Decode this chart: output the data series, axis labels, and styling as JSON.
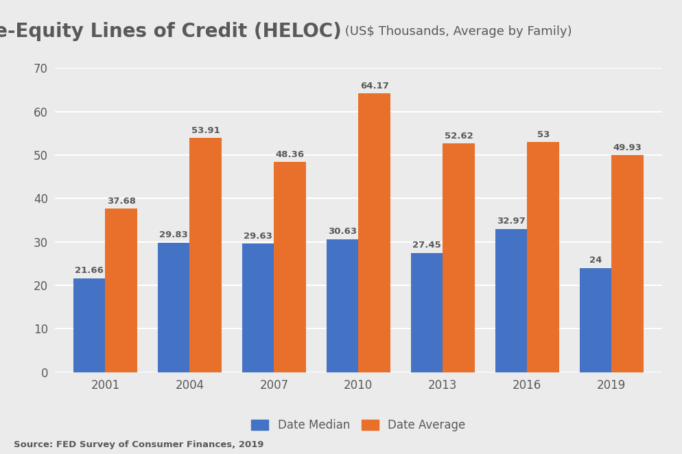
{
  "title_bold": "Home-Equity Lines of Credit (HELOC)",
  "title_light": " (US$ Thousands, Average by Family)",
  "categories": [
    "2001",
    "2004",
    "2007",
    "2010",
    "2013",
    "2016",
    "2019"
  ],
  "median_values": [
    21.66,
    29.83,
    29.63,
    30.63,
    27.45,
    32.97,
    24.0
  ],
  "average_values": [
    37.68,
    53.91,
    48.36,
    64.17,
    52.62,
    53.0,
    49.93
  ],
  "median_color": "#4472C4",
  "average_color": "#E8702A",
  "background_color": "#EBEBEB",
  "plot_bg_color": "#EBEBEB",
  "grid_color": "#FFFFFF",
  "text_color": "#595959",
  "ylim": [
    0,
    70
  ],
  "yticks": [
    0,
    10,
    20,
    30,
    40,
    50,
    60,
    70
  ],
  "legend_median": "Date Median",
  "legend_average": "Date Average",
  "source_text": "Source: FED Survey of Consumer Finances, 2019",
  "bar_width": 0.38,
  "label_fontsize": 9.5,
  "axis_fontsize": 12,
  "title_bold_fontsize": 20,
  "title_light_fontsize": 13
}
